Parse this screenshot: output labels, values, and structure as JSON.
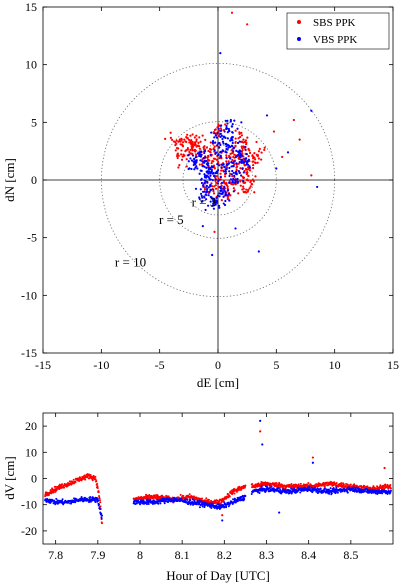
{
  "chart_data": [
    {
      "type": "scatter",
      "xlabel": "dE [cm]",
      "ylabel": "dN [cm]",
      "xlim": [
        -15,
        15
      ],
      "ylim": [
        -15,
        15
      ],
      "xticks": [
        -15,
        -10,
        -5,
        0,
        5,
        10,
        15
      ],
      "yticks": [
        -15,
        -10,
        -5,
        0,
        5,
        10,
        15
      ],
      "grid": false,
      "crosshair_at": [
        0,
        0
      ],
      "legend_position": "top-right",
      "circles": [
        {
          "r": 3,
          "label": "r = 3",
          "label_at": [
            -1.2,
            -2.3
          ]
        },
        {
          "r": 5,
          "label": "r = 5",
          "label_at": [
            -4.0,
            -3.8
          ]
        },
        {
          "r": 10,
          "label": "r = 10",
          "label_at": [
            -7.5,
            -7.5
          ]
        }
      ],
      "series": [
        {
          "name": "SBS PPK",
          "color": "#ff0000",
          "marker": "dot",
          "cluster_points": [
            [
              -3.5,
              3.2
            ],
            [
              -2.5,
              3.4
            ],
            [
              -1.5,
              3.0
            ],
            [
              -0.5,
              2.5
            ],
            [
              0.5,
              1.5
            ],
            [
              1.2,
              2.0
            ],
            [
              2.0,
              1.2
            ],
            [
              2.8,
              0.5
            ],
            [
              1.5,
              -0.2
            ],
            [
              0.3,
              0.0
            ],
            [
              -1.0,
              1.8
            ],
            [
              -2.0,
              2.6
            ],
            [
              2.2,
              2.4
            ],
            [
              3.0,
              2.0
            ],
            [
              1.8,
              3.5
            ],
            [
              0.0,
              4.2
            ],
            [
              -0.5,
              -0.8
            ],
            [
              0.8,
              -1.0
            ],
            [
              2.5,
              -0.5
            ],
            [
              -3.0,
              2.0
            ]
          ],
          "outlier_points": [
            [
              1.2,
              14.5
            ],
            [
              2.5,
              13.5
            ],
            [
              6.5,
              5.2
            ],
            [
              7.0,
              3.5
            ],
            [
              5.5,
              2.0
            ],
            [
              4.0,
              2.8
            ],
            [
              8.0,
              0.4
            ],
            [
              -0.3,
              -4.5
            ],
            [
              4.8,
              4.2
            ],
            [
              3.3,
              3.3
            ]
          ]
        },
        {
          "name": "VBS PPK",
          "color": "#0000ff",
          "marker": "dot",
          "cluster_points": [
            [
              -1.5,
              2.0
            ],
            [
              -0.8,
              1.0
            ],
            [
              -0.3,
              -0.5
            ],
            [
              -1.0,
              -1.5
            ],
            [
              0.5,
              2.5
            ],
            [
              1.0,
              1.0
            ],
            [
              1.5,
              0.2
            ],
            [
              0.2,
              3.5
            ],
            [
              -2.0,
              1.5
            ],
            [
              -0.5,
              0.8
            ],
            [
              1.8,
              2.2
            ],
            [
              0.6,
              -1.2
            ],
            [
              -1.2,
              0.0
            ],
            [
              2.3,
              1.5
            ],
            [
              1.2,
              3.2
            ],
            [
              -0.2,
              -2.0
            ],
            [
              0.9,
              4.5
            ]
          ],
          "outlier_points": [
            [
              0.2,
              11.0
            ],
            [
              8.0,
              6.0
            ],
            [
              8.5,
              -0.6
            ],
            [
              6.0,
              2.4
            ],
            [
              4.2,
              5.6
            ],
            [
              2.0,
              5.0
            ],
            [
              3.5,
              -6.2
            ],
            [
              -0.5,
              -6.5
            ],
            [
              1.5,
              -4.2
            ],
            [
              -1.3,
              -4.0
            ],
            [
              5.0,
              1.0
            ]
          ]
        }
      ]
    },
    {
      "type": "scatter",
      "xlabel": "Hour of Day [UTC]",
      "ylabel": "dV [cm]",
      "xlim": [
        7.77,
        8.6
      ],
      "ylim": [
        -25,
        25
      ],
      "xticks": [
        7.8,
        7.9,
        8,
        8.1,
        8.2,
        8.3,
        8.4,
        8.5
      ],
      "yticks": [
        -20,
        -10,
        0,
        10,
        20
      ],
      "grid": false,
      "series": [
        {
          "name": "SBS PPK",
          "color": "#ff0000",
          "segments": [
            {
              "x": [
                7.775,
                7.8,
                7.83,
                7.86,
                7.88,
                7.895,
                7.905,
                7.91
              ],
              "y": [
                -6,
                -4,
                -2,
                0,
                1,
                0,
                -8,
                -18
              ]
            },
            {
              "x": [
                7.985,
                8.03,
                8.08,
                8.12,
                8.16,
                8.19,
                8.22,
                8.25
              ],
              "y": [
                -8,
                -7,
                -8,
                -7,
                -9,
                -9,
                -5,
                -3
              ]
            },
            {
              "x": [
                8.265,
                8.3,
                8.35,
                8.4,
                8.45,
                8.5,
                8.55,
                8.595
              ],
              "y": [
                -3,
                -2,
                -3,
                -3,
                -2,
                -3,
                -4,
                -3
              ]
            }
          ],
          "spikes": [
            {
              "x": 8.285,
              "y": 18
            },
            {
              "x": 8.41,
              "y": 8
            },
            {
              "x": 8.195,
              "y": -14
            },
            {
              "x": 8.58,
              "y": 4
            }
          ]
        },
        {
          "name": "VBS PPK",
          "color": "#0000ff",
          "segments": [
            {
              "x": [
                7.775,
                7.8,
                7.83,
                7.86,
                7.88,
                7.9,
                7.905,
                7.91
              ],
              "y": [
                -8,
                -9,
                -9,
                -8,
                -8,
                -8,
                -12,
                -15
              ]
            },
            {
              "x": [
                7.985,
                8.03,
                8.08,
                8.12,
                8.16,
                8.19,
                8.22,
                8.25
              ],
              "y": [
                -9,
                -9,
                -8,
                -9,
                -10,
                -11,
                -9,
                -7
              ]
            },
            {
              "x": [
                8.265,
                8.3,
                8.35,
                8.4,
                8.45,
                8.5,
                8.55,
                8.595
              ],
              "y": [
                -5,
                -4,
                -5,
                -4,
                -5,
                -4,
                -5,
                -5
              ]
            }
          ],
          "spikes": [
            {
              "x": 8.285,
              "y": 22
            },
            {
              "x": 8.29,
              "y": 13
            },
            {
              "x": 8.195,
              "y": -16
            },
            {
              "x": 8.41,
              "y": 6
            },
            {
              "x": 8.33,
              "y": -13
            }
          ]
        }
      ]
    }
  ]
}
